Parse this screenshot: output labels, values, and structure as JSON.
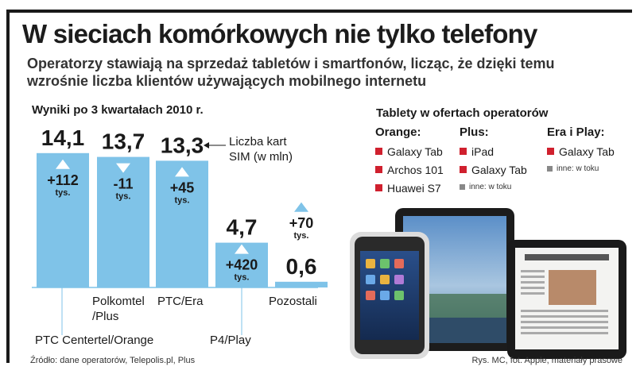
{
  "header": {
    "title": "W sieciach komórkowych nie tylko telefony",
    "subtitle": "Operatorzy stawiają na sprzedaż tabletów i smartfonów, licząc, że dzięki temu wzrośnie liczba klientów używających mobilnego internetu"
  },
  "chart_data": {
    "type": "bar",
    "title": "Wyniki po 3 kwartałach 2010 r.",
    "annotation": "Liczba kart SIM (w mln)",
    "categories": [
      "PTC Centertel/Orange",
      "Polkomtel/Plus",
      "PTC/Era",
      "P4/Play",
      "Pozostali"
    ],
    "value_labels": [
      "14,1",
      "13,7",
      "13,3",
      "4,7",
      "0,6"
    ],
    "values": [
      14.1,
      13.7,
      13.3,
      4.7,
      0.6
    ],
    "change_labels": [
      "+112",
      "-11",
      "+45",
      "+420",
      "+70"
    ],
    "change_values": [
      112,
      -11,
      45,
      420,
      70
    ],
    "change_unit": "tys.",
    "color": "#7fc3e8",
    "arrow_color": "#ffffff"
  },
  "tablets_offer": {
    "title": "Tablety w ofertach operatorów",
    "operators": [
      {
        "name": "Orange:",
        "items": [
          "Galaxy Tab",
          "Archos 101",
          "Huawei S7"
        ],
        "note": ""
      },
      {
        "name": "Plus:",
        "items": [
          "iPad",
          "Galaxy Tab"
        ],
        "note": "inne: w toku"
      },
      {
        "name": "Era i Play:",
        "items": [
          "Galaxy Tab"
        ],
        "note": "inne: w toku"
      }
    ],
    "bullet_color": "#d0202e"
  },
  "footer": {
    "source": "Źródło: dane operatorów, Telepolis.pl, Plus",
    "credits": "Rys. MC, fot. Apple, materiały prasowe"
  }
}
